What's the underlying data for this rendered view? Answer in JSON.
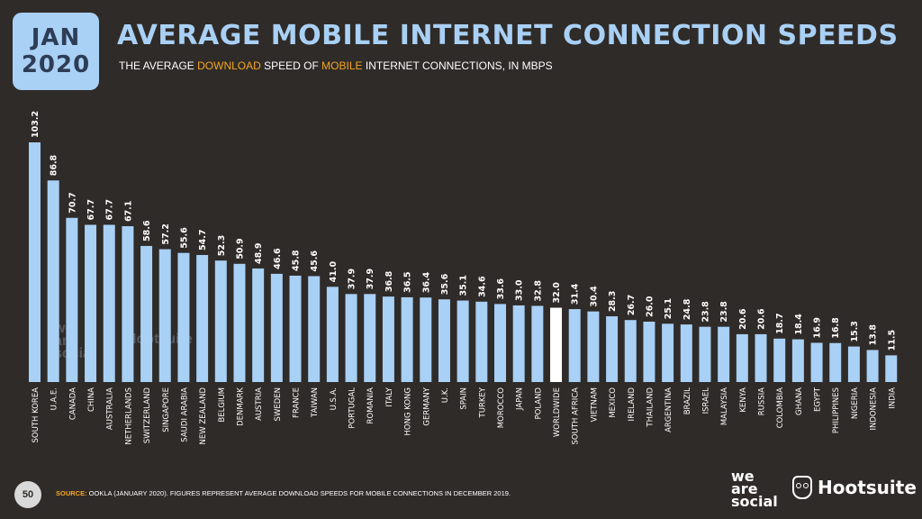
{
  "header": {
    "month": "JAN",
    "year": "2020",
    "title": "AVERAGE MOBILE INTERNET CONNECTION SPEEDS",
    "subtitle_parts": {
      "p1": "THE AVERAGE ",
      "h1": "DOWNLOAD",
      "p2": " SPEED OF ",
      "h2": "MOBILE",
      "p3": " INTERNET CONNECTIONS, IN MBPS"
    }
  },
  "colors": {
    "bar": "#a9d0f5",
    "highlight": "#ffffff",
    "background": "#2f2b28",
    "accent": "#f5a623"
  },
  "chart_data": {
    "type": "bar",
    "categories": [
      "SOUTH KOREA",
      "U.A.E.",
      "CANADA",
      "CHINA",
      "AUSTRALIA",
      "NETHERLANDS",
      "SWITZERLAND",
      "SINGAPORE",
      "SAUDI ARABIA",
      "NEW ZEALAND",
      "BELGIUM",
      "DENMARK",
      "AUSTRIA",
      "SWEDEN",
      "FRANCE",
      "TAIWAN",
      "U.S.A.",
      "PORTUGAL",
      "ROMANIA",
      "ITALY",
      "HONG KONG",
      "GERMANY",
      "U.K.",
      "SPAIN",
      "TURKEY",
      "MOROCCO",
      "JAPAN",
      "POLAND",
      "WORLDWIDE",
      "SOUTH AFRICA",
      "VIETNAM",
      "MEXICO",
      "IRELAND",
      "THAILAND",
      "ARGENTINA",
      "BRAZIL",
      "ISRAEL",
      "MALAYSIA",
      "KENYA",
      "RUSSIA",
      "COLOMBIA",
      "GHANA",
      "EGYPT",
      "PHILIPPINES",
      "NIGERIA",
      "INDONESIA",
      "INDIA"
    ],
    "values": [
      103.2,
      86.8,
      70.7,
      67.7,
      67.7,
      67.1,
      58.6,
      57.2,
      55.6,
      54.7,
      52.3,
      50.9,
      48.9,
      46.6,
      45.8,
      45.6,
      41.0,
      37.9,
      37.9,
      36.8,
      36.5,
      36.4,
      35.6,
      35.1,
      34.6,
      33.6,
      33.0,
      32.8,
      32.0,
      31.4,
      30.4,
      28.3,
      26.7,
      26.0,
      25.1,
      24.8,
      23.8,
      23.8,
      20.6,
      20.6,
      18.7,
      18.4,
      16.9,
      16.8,
      15.3,
      13.8,
      11.5
    ],
    "value_labels": [
      "103.2",
      "86.8",
      "70.7",
      "67.7",
      "67.7",
      "67.1",
      "58.6",
      "57.2",
      "55.6",
      "54.7",
      "52.3",
      "50.9",
      "48.9",
      "46.6",
      "45.8",
      "45.6",
      "41.0",
      "37.9",
      "37.9",
      "36.8",
      "36.5",
      "36.4",
      "35.6",
      "35.1",
      "34.6",
      "33.6",
      "33.0",
      "32.8",
      "32.0",
      "31.4",
      "30.4",
      "28.3",
      "26.7",
      "26.0",
      "25.1",
      "24.8",
      "23.8",
      "23.8",
      "20.6",
      "20.6",
      "18.7",
      "18.4",
      "16.9",
      "16.8",
      "15.3",
      "13.8",
      "11.5"
    ],
    "highlight_category": "WORLDWIDE",
    "ylim": [
      0,
      103.2
    ],
    "grid": false,
    "legend": "none"
  },
  "watermark": {
    "we_are_social": [
      "we",
      "are",
      "social"
    ],
    "hootsuite": "Hootsuite"
  },
  "footer": {
    "page_number": "50",
    "source_label": "SOURCE:",
    "source_text": " OOKLA (JANUARY 2020). FIGURES REPRESENT AVERAGE DOWNLOAD SPEEDS FOR MOBILE CONNECTIONS IN DECEMBER 2019.",
    "brand_we_are_social": [
      "we",
      "are",
      "social"
    ],
    "brand_hootsuite": "Hootsuite"
  }
}
